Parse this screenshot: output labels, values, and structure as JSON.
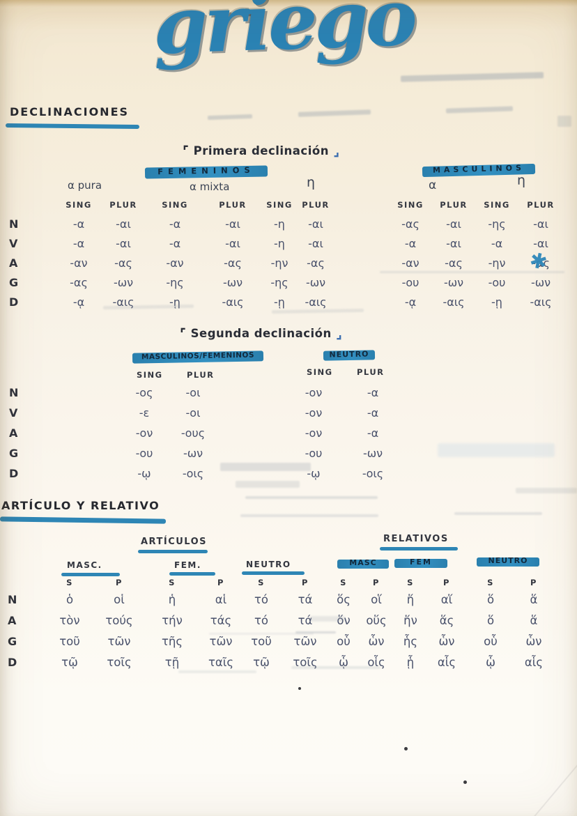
{
  "title": "griego",
  "headings": {
    "declinaciones": "DECLINACIONES",
    "articulo_relativo": "ARTÍCULO Y RELATIVO"
  },
  "brackets": {
    "open": "⌜",
    "close": "⌟"
  },
  "labels": {
    "sing": "SING",
    "plur": "PLUR",
    "s": "S",
    "p": "P"
  },
  "primera": {
    "title": "Primera declinación",
    "cases": [
      "N",
      "V",
      "A",
      "G",
      "D"
    ],
    "femeninos": {
      "heading": "FEMENINOS",
      "groups": [
        "α pura",
        "α mixta",
        "η"
      ],
      "rows": [
        [
          "-α",
          "-αι",
          "-α",
          "-αι",
          "-η",
          "-αι"
        ],
        [
          "-α",
          "-αι",
          "-α",
          "-αι",
          "-η",
          "-αι"
        ],
        [
          "-αν",
          "-ας",
          "-αν",
          "-ας",
          "-ην",
          "-ας"
        ],
        [
          "-ας",
          "-ων",
          "-ης",
          "-ων",
          "-ης",
          "-ων"
        ],
        [
          "-ᾳ",
          "-αις",
          "-ῃ",
          "-αις",
          "-ῃ",
          "-αις"
        ]
      ]
    },
    "masculinos": {
      "heading": "MASCULINOS",
      "groups": [
        "α",
        "η"
      ],
      "rows": [
        [
          "-ας",
          "-αι",
          "-ης",
          "-αι"
        ],
        [
          "-α",
          "-αι",
          "-α",
          "-αι"
        ],
        [
          "-αν",
          "-ας",
          "-ην",
          "-ας"
        ],
        [
          "-ου",
          "-ων",
          "-ου",
          "-ων"
        ],
        [
          "-ᾳ",
          "-αις",
          "-ῃ",
          "-αις"
        ]
      ]
    }
  },
  "segunda": {
    "title": "Segunda declinación",
    "cases": [
      "N",
      "V",
      "A",
      "G",
      "D"
    ],
    "masc_fem": {
      "heading": "MASCULINOS/FEMENINOS",
      "rows": [
        [
          "-ος",
          "-οι"
        ],
        [
          "-ε",
          "-οι"
        ],
        [
          "-ον",
          "-ους"
        ],
        [
          "-ου",
          "-ων"
        ],
        [
          "-ῳ",
          "-οις"
        ]
      ]
    },
    "neutro": {
      "heading": "NEUTRO",
      "rows": [
        [
          "-ον",
          "-α"
        ],
        [
          "-ον",
          "-α"
        ],
        [
          "-ον",
          "-α"
        ],
        [
          "-ου",
          "-ων"
        ],
        [
          "-ῳ",
          "-οις"
        ]
      ]
    }
  },
  "articulo_relativo": {
    "articulos": {
      "heading": "ARTÍCULOS",
      "genders": [
        "MASC.",
        "FEM.",
        "NEUTRO"
      ],
      "cases": [
        "N",
        "A",
        "G",
        "D"
      ],
      "rows": [
        [
          "ὁ",
          "οἱ",
          "ἡ",
          "αἱ",
          "τό",
          "τά"
        ],
        [
          "τὸν",
          "τούς",
          "τήν",
          "τάς",
          "τό",
          "τά"
        ],
        [
          "τοῦ",
          "τῶν",
          "τῆς",
          "τῶν",
          "τοῦ",
          "τῶν"
        ],
        [
          "τῷ",
          "τοῖς",
          "τῇ",
          "ταῖς",
          "τῷ",
          "τοῖς"
        ]
      ]
    },
    "relativos": {
      "heading": "RELATIVOS",
      "genders": [
        "MASC",
        "FEM",
        "NEUTRO"
      ],
      "rows": [
        [
          "ὅς",
          "οἵ",
          "ἥ",
          "αἵ",
          "ὅ",
          "ἅ"
        ],
        [
          "ὅν",
          "οὕς",
          "ἥν",
          "ἅς",
          "ὅ",
          "ἅ"
        ],
        [
          "οὗ",
          "ὧν",
          "ἧς",
          "ὧν",
          "οὗ",
          "ὧν"
        ],
        [
          "ᾧ",
          "οἷς",
          "ᾗ",
          "αἷς",
          "ᾧ",
          "αἷς"
        ]
      ]
    }
  },
  "annotations": {
    "scribble": "✱"
  },
  "colors": {
    "marker_blue": "#2e86b5",
    "title_blue": "#2b82b3",
    "ink": "#26282f",
    "greek_ink": "#49516b",
    "paper": "#f5ecd8"
  }
}
